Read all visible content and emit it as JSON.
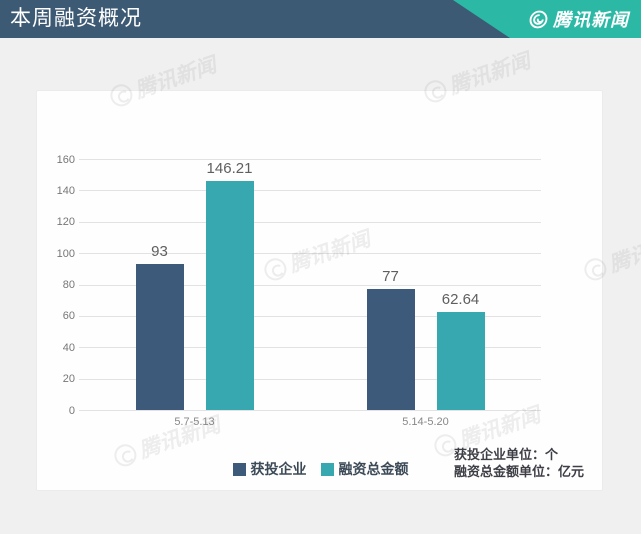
{
  "header": {
    "title": "本周融资概况",
    "brand": "腾讯新闻"
  },
  "watermark": {
    "text": "腾讯新闻"
  },
  "chart_data": {
    "type": "bar",
    "title": "本周融资概况",
    "categories": [
      "5.7-5.13",
      "5.14-5.20"
    ],
    "series": [
      {
        "name": "获投企业",
        "color": "#3d5a7a",
        "values": [
          93,
          77
        ]
      },
      {
        "name": "融资总金额",
        "color": "#38a8b0",
        "values": [
          146.21,
          62.64
        ]
      }
    ],
    "value_labels": [
      [
        "93",
        "77"
      ],
      [
        "146.21",
        "62.64"
      ]
    ],
    "ylim": [
      0,
      160
    ],
    "ytick_step": 20,
    "grid": true,
    "xlabel": "",
    "ylabel": "",
    "legend_position": "bottom",
    "notes": [
      "获投企业单位：个",
      "融资总金额单位：亿元"
    ]
  },
  "theme": {
    "header_bg": "#3d5a74",
    "accent": "#2bb9a6",
    "page_bg": "#f0f0f1",
    "card_bg": "#fefefe",
    "grid_color": "#e2e2e4"
  }
}
